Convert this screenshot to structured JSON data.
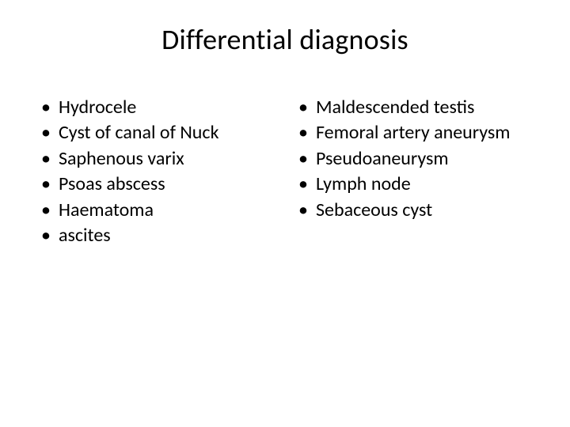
{
  "slide": {
    "title": "Differential diagnosis",
    "title_fontsize": 36,
    "body_fontsize": 24,
    "background_color": "#ffffff",
    "text_color": "#000000",
    "font_family": "Calibri",
    "columns": {
      "left": [
        "Hydrocele",
        "Cyst of canal of Nuck",
        "Saphenous varix",
        "Psoas abscess",
        "Haematoma",
        "ascites"
      ],
      "right": [
        "Maldescended testis",
        "Femoral artery aneurysm",
        "Pseudoaneurysm",
        "Lymph node",
        "Sebaceous cyst"
      ]
    },
    "bullet_char": "•"
  }
}
